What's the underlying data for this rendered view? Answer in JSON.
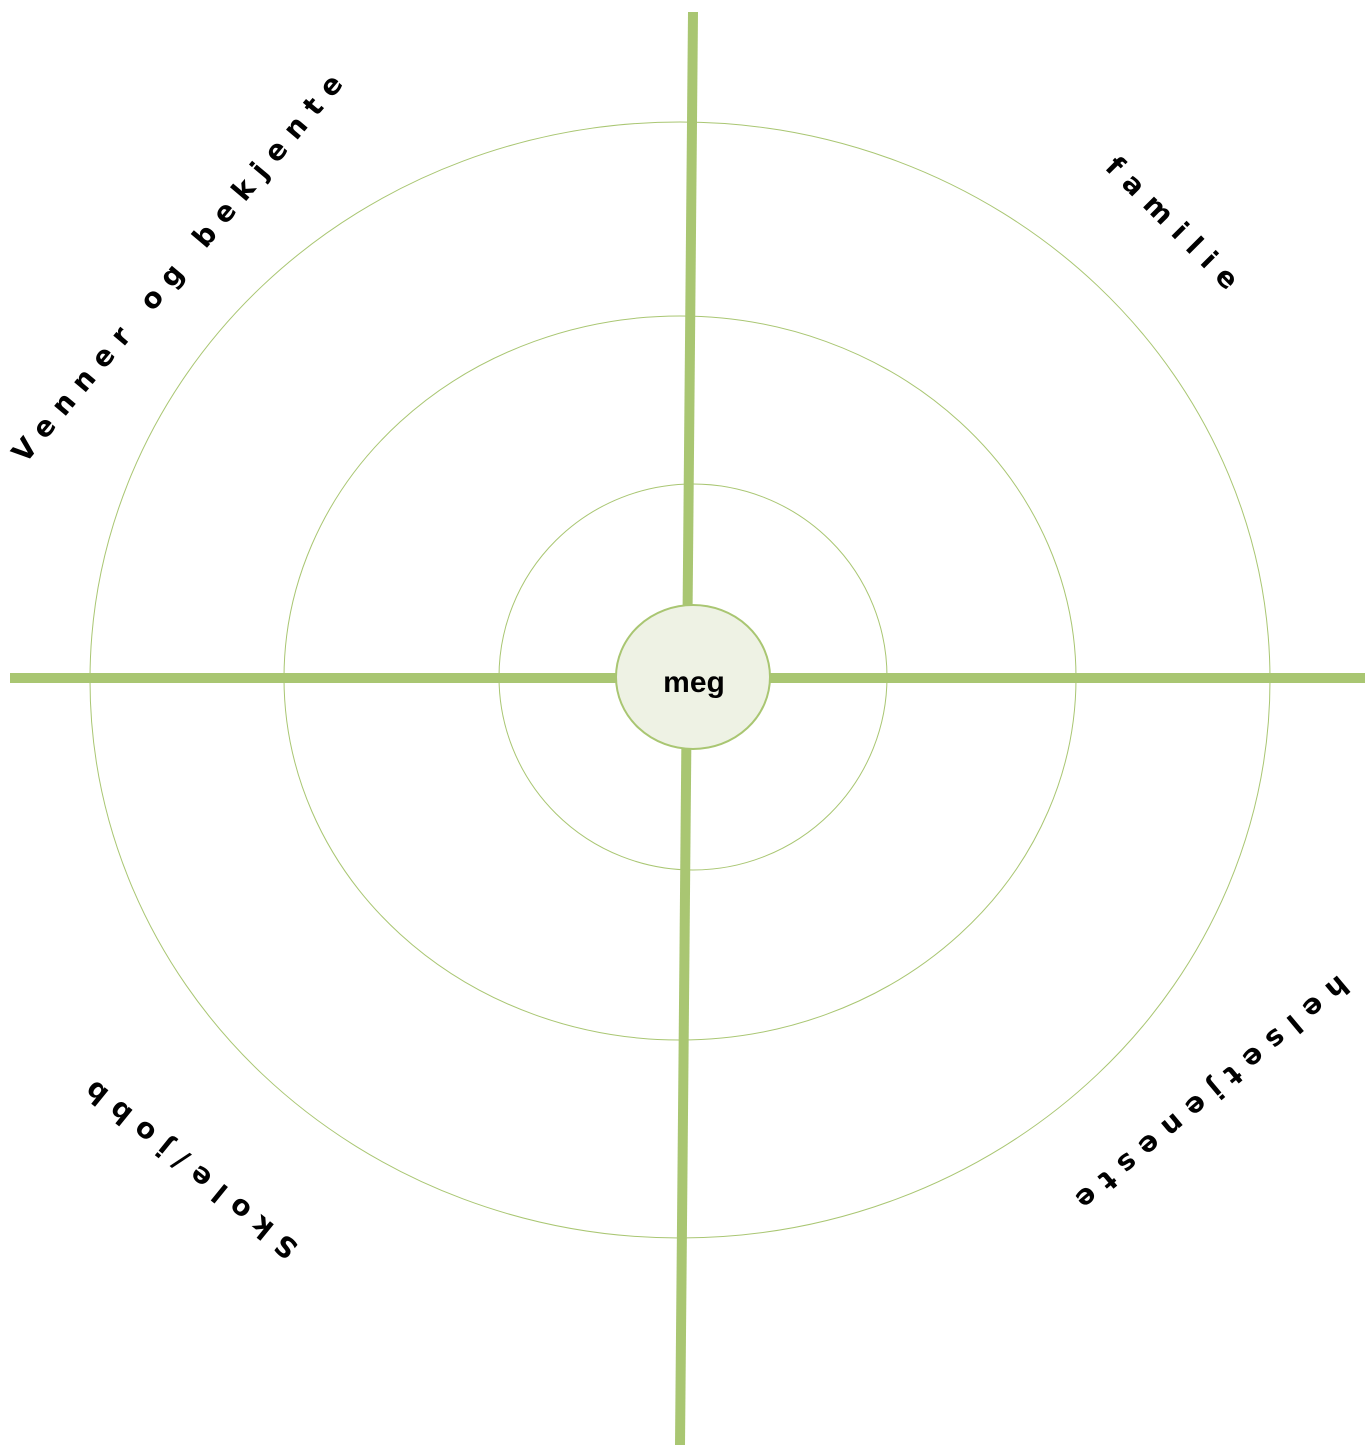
{
  "center": {
    "label": "meg"
  },
  "sectors": [
    {
      "label": "Venner og bekjente"
    },
    {
      "label": "familie"
    },
    {
      "label": "helsetjeneste"
    },
    {
      "label": "Skole/jobb"
    }
  ]
}
